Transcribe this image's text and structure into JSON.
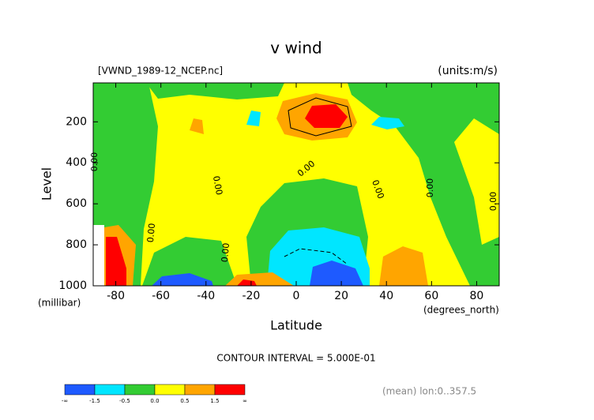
{
  "chart_data": {
    "type": "contour",
    "title": "v wind",
    "file_label": "[VWND_1989-12_NCEP.nc]",
    "units_label": "(units:m/s)",
    "y_label": "Level",
    "y_units": "(millibar)",
    "x_label": "Latitude",
    "x_units": "(degrees_north)",
    "xlim": [
      -90,
      90
    ],
    "xticks": [
      -80,
      -60,
      -40,
      -20,
      0,
      20,
      40,
      60,
      80
    ],
    "ylim": [
      1000,
      10
    ],
    "yticks": [
      200,
      400,
      600,
      800,
      1000
    ],
    "contour_interval": "CONTOUR INTERVAL = 5.000E-01",
    "footnote": "(mean) lon:0..357.5",
    "contour_labels": [
      "0.00",
      "0.00",
      "0.00",
      "0.00",
      "0.00",
      "0.00",
      "0.00",
      "0.00"
    ],
    "colorbar": {
      "colors": [
        "#1e5aff",
        "#00e6ff",
        "#33cc33",
        "#ffff00",
        "#ffa500",
        "#ff0000"
      ],
      "labels": [
        "-∞",
        "-1.5",
        "-0.5",
        "0.0",
        "0.5",
        "1.5",
        "∞"
      ]
    }
  }
}
